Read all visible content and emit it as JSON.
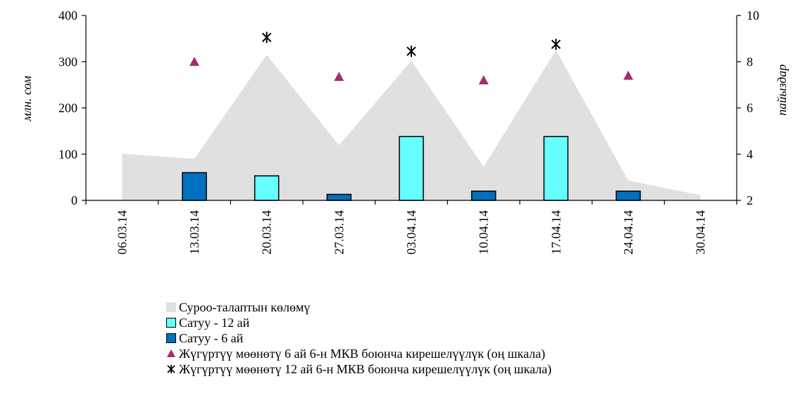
{
  "chart_data": {
    "type": "bar",
    "categories": [
      "06.03.14",
      "13.03.14",
      "20.03.14",
      "27.03.14",
      "03.04.14",
      "10.04.14",
      "17.04.14",
      "24.04.14",
      "30.04.14"
    ],
    "ylabel": "млн. сом",
    "y2label": "пайыздар",
    "ylim": [
      0,
      400
    ],
    "y2lim": [
      2,
      10
    ],
    "yticks": [
      "0",
      "100",
      "200",
      "300",
      "400"
    ],
    "y2ticks": [
      "2",
      "4",
      "6",
      "8",
      "10"
    ],
    "series": [
      {
        "name": "Суроо-талаптын көлөмү",
        "kind": "area",
        "axis": "left",
        "color": "#e0e0e0",
        "values": [
          101,
          90,
          315,
          119,
          302,
          73,
          325,
          43,
          11
        ]
      },
      {
        "name": "Сатуу - 12 ай",
        "kind": "bar",
        "axis": "left",
        "color": "#66ffff",
        "values": [
          0,
          0,
          53,
          0,
          138,
          0,
          138,
          0,
          0
        ]
      },
      {
        "name": "Сатуу - 6 ай",
        "kind": "bar",
        "axis": "left",
        "color": "#0070c0",
        "values": [
          0,
          60,
          0,
          13,
          0,
          20,
          0,
          20,
          0
        ]
      },
      {
        "name": "Жүгүртүү мөөнөтү 6 ай 6-н МКВ боюнча кирешелүүлүк (оң шкала)",
        "kind": "marker-triangle",
        "axis": "right",
        "color": "#a0306a",
        "values": [
          null,
          8.0,
          null,
          7.35,
          null,
          7.2,
          null,
          7.4,
          null
        ]
      },
      {
        "name": "Жүгүртүү мөөнөтү 12 ай 6-н МКВ боюнча кирешелүүлүк (оң шкала)",
        "kind": "marker-star",
        "axis": "right",
        "color": "#000000",
        "values": [
          null,
          null,
          9.05,
          null,
          8.45,
          null,
          8.75,
          null,
          null
        ]
      }
    ],
    "legend_position": "bottom"
  },
  "legend": {
    "area": "Суроо-талаптын көлөмү",
    "bar12": "Сатуу - 12 ай",
    "bar6": "Сатуу - 6 ай",
    "tri": "Жүгүртүү мөөнөтү 6 ай 6-н МКВ боюнча кирешелүүлүк (оң шкала)",
    "star": "Жүгүртүү мөөнөтү 12 ай 6-н МКВ боюнча кирешелүүлүк (оң шкала)"
  }
}
